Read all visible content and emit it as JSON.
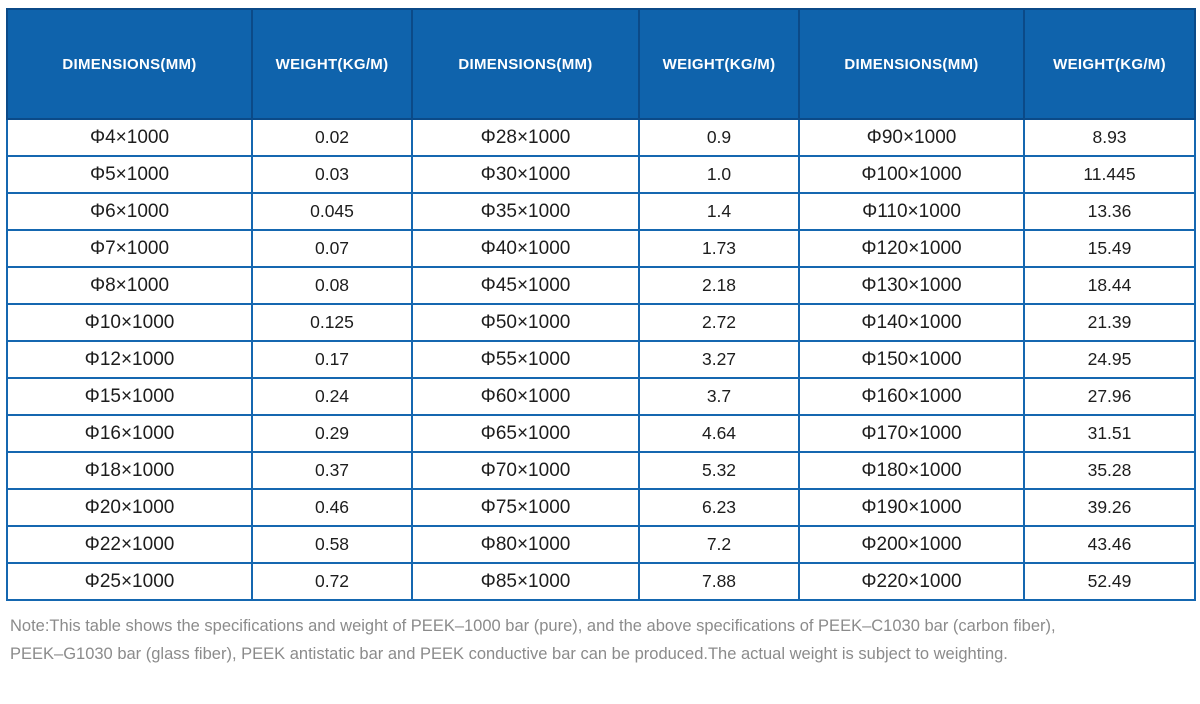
{
  "chart_data": {
    "type": "table",
    "columns": [
      "DIMENSIONS(MM)",
      "WEIGHT(KG/M)",
      "DIMENSIONS(MM)",
      "WEIGHT(KG/M)",
      "DIMENSIONS(MM)",
      "WEIGHT(KG/M)"
    ],
    "rows": [
      [
        "Φ4×1000",
        "0.02",
        "Φ28×1000",
        "0.9",
        "Φ90×1000",
        "8.93"
      ],
      [
        "Φ5×1000",
        "0.03",
        "Φ30×1000",
        "1.0",
        "Φ100×1000",
        "11.445"
      ],
      [
        "Φ6×1000",
        "0.045",
        "Φ35×1000",
        "1.4",
        "Φ110×1000",
        "13.36"
      ],
      [
        "Φ7×1000",
        "0.07",
        "Φ40×1000",
        "1.73",
        "Φ120×1000",
        "15.49"
      ],
      [
        "Φ8×1000",
        "0.08",
        "Φ45×1000",
        "2.18",
        "Φ130×1000",
        "18.44"
      ],
      [
        "Φ10×1000",
        "0.125",
        "Φ50×1000",
        "2.72",
        "Φ140×1000",
        "21.39"
      ],
      [
        "Φ12×1000",
        "0.17",
        "Φ55×1000",
        "3.27",
        "Φ150×1000",
        "24.95"
      ],
      [
        "Φ15×1000",
        "0.24",
        "Φ60×1000",
        "3.7",
        "Φ160×1000",
        "27.96"
      ],
      [
        "Φ16×1000",
        "0.29",
        "Φ65×1000",
        "4.64",
        "Φ170×1000",
        "31.51"
      ],
      [
        "Φ18×1000",
        "0.37",
        "Φ70×1000",
        "5.32",
        "Φ180×1000",
        "35.28"
      ],
      [
        "Φ20×1000",
        "0.46",
        "Φ75×1000",
        "6.23",
        "Φ190×1000",
        "39.26"
      ],
      [
        "Φ22×1000",
        "0.58",
        "Φ80×1000",
        "7.2",
        "Φ200×1000",
        "43.46"
      ],
      [
        "Φ25×1000",
        "0.72",
        "Φ85×1000",
        "7.88",
        "Φ220×1000",
        "52.49"
      ]
    ]
  },
  "note": {
    "lines": [
      "Note:This table shows the specifications and weight of PEEK–1000 bar (pure), and the above specifications of PEEK–C1030 bar (carbon fiber),",
      "PEEK–G1030 bar (glass fiber), PEEK antistatic bar and PEEK conductive bar can be produced.The actual weight is subject to weighting."
    ]
  },
  "colors": {
    "header_background": "#0f63ac",
    "header_divider": "#0b4a88",
    "grid_border": "#1567b0",
    "cell_text": "#1d1d1d",
    "note_text": "#8b8b8b",
    "page_background": "#ffffff"
  }
}
